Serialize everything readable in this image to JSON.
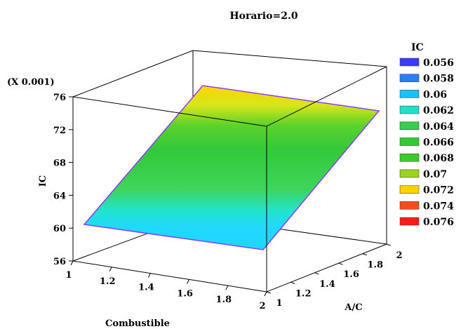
{
  "chart_data": {
    "type": "surface",
    "title": "Horario=2.0",
    "z_multiplier_label": "(X 0.001)",
    "zlabel": "IC",
    "xlabel": "Combustible",
    "ylabel": "A/C",
    "x_ticks": [
      "1",
      "1.2",
      "1.4",
      "1.6",
      "1.8",
      "2"
    ],
    "y_ticks": [
      "1",
      "1.2",
      "1.4",
      "1.6",
      "1.8",
      "2"
    ],
    "z_ticks": [
      "56",
      "60",
      "64",
      "68",
      "72",
      "76"
    ],
    "xlim": [
      1,
      2
    ],
    "ylim": [
      1,
      2
    ],
    "zlim": [
      56,
      76
    ],
    "surface_corners": [
      {
        "combustible": 1,
        "ac": 1,
        "ic": 59.8
      },
      {
        "combustible": 2,
        "ac": 1,
        "ic": 57.8
      },
      {
        "combustible": 1,
        "ac": 2,
        "ic": 77.5
      },
      {
        "combustible": 2,
        "ac": 2,
        "ic": 75.5
      }
    ],
    "legend": {
      "title": "IC",
      "entries": [
        {
          "label": "0.056",
          "color": "#3b3bff"
        },
        {
          "label": "0.058",
          "color": "#2f7dff"
        },
        {
          "label": "0.06",
          "color": "#19c2ff"
        },
        {
          "label": "0.062",
          "color": "#20e0c8"
        },
        {
          "label": "0.064",
          "color": "#33cf4d"
        },
        {
          "label": "0.066",
          "color": "#2fcc2f"
        },
        {
          "label": "0.068",
          "color": "#3ccc2a"
        },
        {
          "label": "0.07",
          "color": "#9bd41a"
        },
        {
          "label": "0.072",
          "color": "#ffd200"
        },
        {
          "label": "0.074",
          "color": "#ff4a1a"
        },
        {
          "label": "0.076",
          "color": "#ff1a1a"
        }
      ]
    }
  }
}
